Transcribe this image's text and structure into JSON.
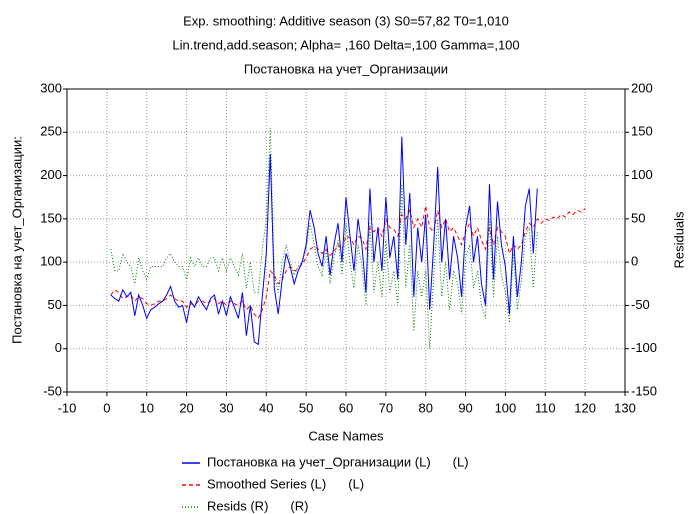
{
  "chart_data": {
    "type": "line",
    "title": "Exp. smoothing: Additive season (3) S0=57,82 T0=1,010",
    "subtitle": "Lin.trend,add.season; Alpha= ,160 Delta=,100 Gamma=,100",
    "subtitle2": "Постановка на учет_Организации",
    "x_label": "Case Names",
    "y_label": "Постановка на учет_Организации:",
    "y2_label": "Residuals",
    "xlim": [
      -10,
      130
    ],
    "xticks": [
      -10,
      0,
      10,
      20,
      30,
      40,
      50,
      60,
      70,
      80,
      90,
      100,
      110,
      120,
      130
    ],
    "ylim": [
      -50,
      300
    ],
    "yticks": [
      -50,
      0,
      50,
      100,
      150,
      200,
      250,
      300
    ],
    "y2lim": [
      -150,
      200
    ],
    "y2ticks": [
      -150,
      -100,
      -50,
      0,
      50,
      100,
      150,
      200
    ],
    "grid": true,
    "series": [
      {
        "name": "Постановка на учет_Организации (L)",
        "legend_suffix": "(L)",
        "color": "#0000ff",
        "style": "solid",
        "x": [
          1,
          2,
          3,
          4,
          5,
          6,
          7,
          8,
          9,
          10,
          11,
          12,
          13,
          14,
          15,
          16,
          17,
          18,
          19,
          20,
          21,
          22,
          23,
          24,
          25,
          26,
          27,
          28,
          29,
          30,
          31,
          32,
          33,
          34,
          35,
          36,
          37,
          38,
          39,
          40,
          41,
          42,
          43,
          44,
          45,
          46,
          47,
          48,
          49,
          50,
          51,
          52,
          53,
          54,
          55,
          56,
          57,
          58,
          59,
          60,
          61,
          62,
          63,
          64,
          65,
          66,
          67,
          68,
          69,
          70,
          71,
          72,
          73,
          74,
          75,
          76,
          77,
          78,
          79,
          80,
          81,
          82,
          83,
          84,
          85,
          86,
          87,
          88,
          89,
          90,
          91,
          92,
          93,
          94,
          95,
          96,
          97,
          98,
          99,
          100,
          101,
          102,
          103,
          104,
          105,
          106,
          107,
          108
        ],
        "values": [
          62,
          58,
          55,
          68,
          60,
          65,
          38,
          62,
          50,
          35,
          45,
          48,
          52,
          55,
          62,
          72,
          55,
          48,
          50,
          30,
          55,
          48,
          60,
          52,
          45,
          58,
          62,
          40,
          55,
          38,
          60,
          48,
          35,
          65,
          15,
          50,
          8,
          5,
          60,
          110,
          225,
          70,
          40,
          80,
          110,
          95,
          75,
          90,
          100,
          120,
          160,
          140,
          110,
          95,
          130,
          85,
          120,
          145,
          100,
          175,
          130,
          90,
          150,
          120,
          65,
          185,
          100,
          140,
          90,
          175,
          105,
          130,
          80,
          245,
          120,
          180,
          60,
          140,
          100,
          155,
          45,
          120,
          210,
          100,
          150,
          80,
          130,
          105,
          60,
          140,
          165,
          100,
          130,
          75,
          50,
          190,
          80,
          170,
          120,
          95,
          40,
          130,
          60,
          100,
          165,
          185,
          110,
          185
        ]
      },
      {
        "name": "Smoothed Series (L)",
        "legend_suffix": "(L)",
        "color": "#ff0000",
        "style": "dashed",
        "x": [
          1,
          2,
          3,
          4,
          5,
          6,
          7,
          8,
          9,
          10,
          11,
          12,
          13,
          14,
          15,
          16,
          17,
          18,
          19,
          20,
          21,
          22,
          23,
          24,
          25,
          26,
          27,
          28,
          29,
          30,
          31,
          32,
          33,
          34,
          35,
          36,
          37,
          38,
          39,
          40,
          41,
          42,
          43,
          44,
          45,
          46,
          47,
          48,
          49,
          50,
          51,
          52,
          53,
          54,
          55,
          56,
          57,
          58,
          59,
          60,
          61,
          62,
          63,
          64,
          65,
          66,
          67,
          68,
          69,
          70,
          71,
          72,
          73,
          74,
          75,
          76,
          77,
          78,
          79,
          80,
          81,
          82,
          83,
          84,
          85,
          86,
          87,
          88,
          89,
          90,
          91,
          92,
          93,
          94,
          95,
          96,
          97,
          98,
          99,
          100,
          101,
          102,
          103,
          104,
          105,
          106,
          107,
          108,
          109,
          110,
          111,
          112,
          113,
          114,
          115,
          116,
          117,
          118,
          119,
          120
        ],
        "values": [
          62,
          68,
          65,
          58,
          60,
          62,
          55,
          60,
          58,
          52,
          50,
          52,
          55,
          55,
          58,
          62,
          58,
          55,
          55,
          48,
          52,
          50,
          55,
          55,
          52,
          55,
          58,
          52,
          55,
          50,
          55,
          52,
          50,
          55,
          45,
          50,
          40,
          35,
          45,
          60,
          90,
          85,
          75,
          80,
          90,
          95,
          90,
          92,
          98,
          105,
          115,
          118,
          115,
          110,
          115,
          108,
          112,
          120,
          115,
          130,
          128,
          120,
          130,
          128,
          115,
          140,
          135,
          140,
          130,
          150,
          140,
          138,
          130,
          155,
          150,
          160,
          140,
          150,
          140,
          165,
          140,
          135,
          160,
          140,
          150,
          135,
          140,
          130,
          120,
          135,
          145,
          130,
          140,
          125,
          115,
          140,
          120,
          140,
          135,
          130,
          110,
          120,
          115,
          120,
          135,
          145,
          140,
          150,
          145,
          150,
          148,
          152,
          150,
          155,
          152,
          158,
          155,
          160,
          158,
          162
        ]
      },
      {
        "name": "Resids (R)",
        "legend_suffix": "(R)",
        "color": "#008000",
        "style": "dotted",
        "axis": "y2",
        "x": [
          1,
          2,
          3,
          4,
          5,
          6,
          7,
          8,
          9,
          10,
          11,
          12,
          13,
          14,
          15,
          16,
          17,
          18,
          19,
          20,
          21,
          22,
          23,
          24,
          25,
          26,
          27,
          28,
          29,
          30,
          31,
          32,
          33,
          34,
          35,
          36,
          37,
          38,
          39,
          40,
          41,
          42,
          43,
          44,
          45,
          46,
          47,
          48,
          49,
          50,
          51,
          52,
          53,
          54,
          55,
          56,
          57,
          58,
          59,
          60,
          61,
          62,
          63,
          64,
          65,
          66,
          67,
          68,
          69,
          70,
          71,
          72,
          73,
          74,
          75,
          76,
          77,
          78,
          79,
          80,
          81,
          82,
          83,
          84,
          85,
          86,
          87,
          88,
          89,
          90,
          91,
          92,
          93,
          94,
          95,
          96,
          97,
          98,
          99,
          100,
          101,
          102,
          103,
          104,
          105,
          106,
          107,
          108
        ],
        "values": [
          15,
          -10,
          -10,
          10,
          0,
          -5,
          -25,
          5,
          -10,
          -20,
          -5,
          -5,
          -5,
          -5,
          5,
          10,
          0,
          -5,
          -5,
          -20,
          5,
          -5,
          5,
          -5,
          -5,
          5,
          5,
          -10,
          5,
          -10,
          5,
          -5,
          -15,
          10,
          -30,
          0,
          -35,
          -35,
          15,
          50,
          155,
          -15,
          -35,
          0,
          20,
          0,
          -15,
          -5,
          0,
          15,
          45,
          20,
          -5,
          -15,
          15,
          -25,
          5,
          25,
          -15,
          45,
          0,
          -30,
          20,
          -5,
          -50,
          45,
          -35,
          0,
          -40,
          25,
          -35,
          -10,
          -50,
          90,
          -30,
          20,
          -80,
          -10,
          -40,
          -10,
          -100,
          -15,
          50,
          -40,
          0,
          -55,
          -10,
          -25,
          -60,
          5,
          20,
          -30,
          -10,
          -50,
          -65,
          50,
          -40,
          30,
          -15,
          -35,
          -70,
          10,
          -55,
          -20,
          30,
          40,
          -30,
          35
        ]
      }
    ]
  }
}
